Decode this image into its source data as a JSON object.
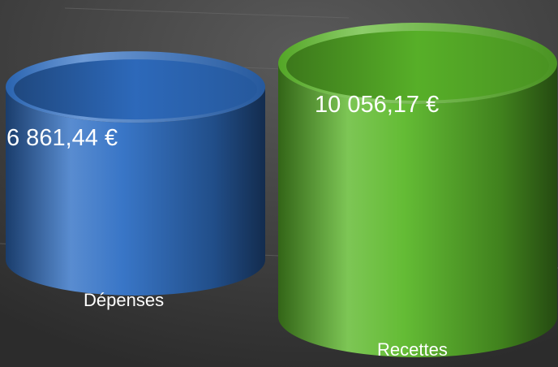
{
  "chart_data": {
    "type": "cylinder",
    "categories": [
      "Dépenses",
      "Recettes"
    ],
    "values": [
      6861.44,
      10056.17
    ],
    "value_labels": [
      "6 861,44 €",
      "10 056,17 €"
    ],
    "colors": [
      "#2f6fc4",
      "#5cb82a"
    ]
  }
}
